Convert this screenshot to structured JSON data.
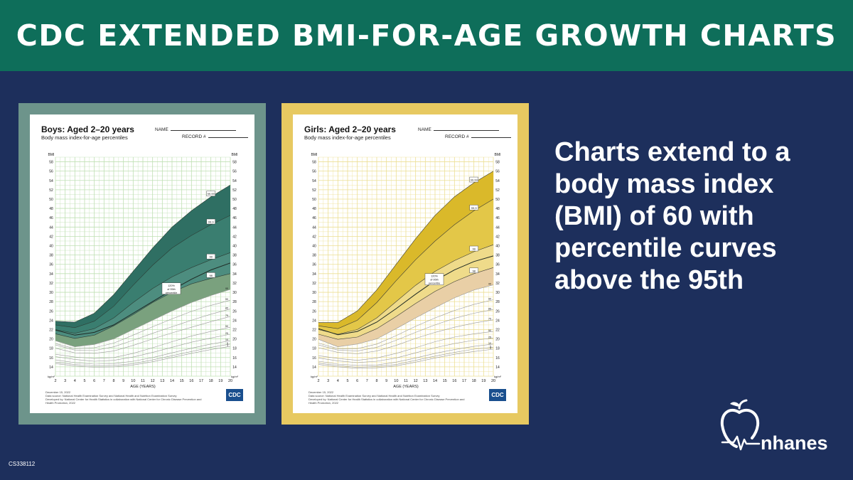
{
  "banner": {
    "title": "CDC EXTENDED BMI-FOR-AGE GROWTH CHARTS"
  },
  "caption": "Charts extend to a body mass index (BMI) of 60 with percentile curves above the 95th",
  "code": "CS338112",
  "logo": {
    "text": "nhanes",
    "icon": "apple-heartbeat-icon"
  },
  "colors": {
    "background": "#1d2f5c",
    "banner": "#0e6e5a",
    "boys_frame": "#6d948b",
    "girls_frame": "#e7c961"
  },
  "sheets": [
    {
      "title": "Boys: Aged 2–20 years",
      "subtitle": "Body mass index-for-age percentiles",
      "name_label": "NAME",
      "record_label": "RECORD #",
      "footer": [
        "December 15, 2022",
        "Data source: National Health Examination Survey and National Health and Nutrition Examination Survey",
        "Developed by: National Center for Health Statistics in collaboration with National Center for Chronic Disease Prevention and",
        "Health Promotion, 2022"
      ],
      "cdc_logo": "CDC"
    },
    {
      "title": "Girls: Aged 2–20 years",
      "subtitle": "Body mass index-for-age percentiles",
      "name_label": "NAME",
      "record_label": "RECORD #",
      "footer": [
        "December 15, 2022",
        "Data source: National Health Examination Survey and National Health and Nutrition Examination Survey",
        "Developed by: National Center for Health Statistics in collaboration with National Center for Chronic Disease Prevention and",
        "Health Promotion, 2022"
      ],
      "cdc_logo": "CDC"
    }
  ],
  "chart_data": [
    {
      "type": "line",
      "title": "Boys: Aged 2–20 years",
      "subtitle": "Body mass index-for-age percentiles",
      "xlabel": "AGE (YEARS)",
      "ylabel": "BMI",
      "unit": "kg/m²",
      "xlim": [
        2,
        20
      ],
      "ylim": [
        12,
        59
      ],
      "xticks": [
        2,
        3,
        4,
        5,
        6,
        7,
        8,
        9,
        10,
        11,
        12,
        13,
        14,
        15,
        16,
        17,
        18,
        19,
        20
      ],
      "yticks": [
        14,
        16,
        18,
        20,
        22,
        24,
        26,
        28,
        30,
        32,
        34,
        36,
        38,
        40,
        42,
        44,
        46,
        48,
        50,
        52,
        54,
        56,
        58
      ],
      "grid": true,
      "theme": {
        "grid": "#bfe0b3",
        "bands": [
          "#2f6f63",
          "#3a7e70",
          "#4d8d7f",
          "#7aa17e"
        ],
        "line": "#2a3b33"
      },
      "x": [
        2,
        4,
        6,
        8,
        10,
        12,
        14,
        16,
        18,
        20
      ],
      "series": [
        {
          "name": "99.99",
          "values": [
            23.8,
            23.6,
            25.5,
            29.5,
            34.5,
            39.5,
            44.0,
            47.5,
            50.5,
            53.0
          ]
        },
        {
          "name": "99.9",
          "values": [
            23.0,
            22.4,
            23.8,
            27.0,
            31.5,
            35.8,
            39.5,
            42.2,
            44.5,
            46.5
          ]
        },
        {
          "name": "99",
          "values": [
            22.0,
            21.2,
            22.2,
            24.5,
            27.8,
            30.8,
            33.3,
            35.3,
            37.0,
            38.5
          ]
        },
        {
          "name": "120% of 95th percentile",
          "values": [
            21.9,
            20.8,
            21.4,
            23.0,
            25.5,
            28.0,
            30.5,
            32.8,
            34.8,
            36.3
          ]
        },
        {
          "name": "98",
          "values": [
            21.1,
            20.1,
            20.8,
            22.8,
            25.2,
            27.8,
            30.0,
            31.8,
            33.0,
            34.0
          ]
        },
        {
          "name": "95",
          "values": [
            19.6,
            18.3,
            18.8,
            20.0,
            22.0,
            24.0,
            26.0,
            27.8,
            29.3,
            30.6
          ]
        },
        {
          "name": "90",
          "values": [
            19.0,
            17.9,
            18.1,
            19.1,
            20.8,
            22.6,
            24.3,
            25.9,
            27.2,
            28.3
          ]
        },
        {
          "name": "85",
          "values": [
            18.7,
            17.6,
            17.5,
            18.3,
            19.7,
            21.2,
            22.6,
            24.0,
            25.3,
            26.4
          ]
        },
        {
          "name": "75",
          "values": [
            18.0,
            17.0,
            16.9,
            17.4,
            18.6,
            20.0,
            21.3,
            22.5,
            23.7,
            24.8
          ]
        },
        {
          "name": "50",
          "values": [
            16.7,
            16.1,
            15.8,
            16.0,
            16.9,
            18.1,
            19.4,
            20.6,
            21.6,
            22.5
          ]
        },
        {
          "name": "25",
          "values": [
            16.2,
            15.6,
            15.2,
            15.4,
            16.1,
            17.1,
            18.2,
            19.3,
            20.2,
            21.0
          ]
        },
        {
          "name": "10",
          "values": [
            15.5,
            14.9,
            14.6,
            14.7,
            15.2,
            16.0,
            17.0,
            18.0,
            18.9,
            19.6
          ]
        },
        {
          "name": "5",
          "values": [
            15.0,
            14.5,
            14.2,
            14.3,
            14.7,
            15.5,
            16.4,
            17.3,
            18.2,
            18.9
          ]
        },
        {
          "name": "3",
          "values": [
            14.7,
            14.2,
            13.9,
            14.0,
            14.4,
            15.1,
            16.0,
            16.9,
            17.7,
            18.4
          ]
        }
      ]
    },
    {
      "type": "line",
      "title": "Girls: Aged 2–20 years",
      "subtitle": "Body mass index-for-age percentiles",
      "xlabel": "AGE (YEARS)",
      "ylabel": "BMI",
      "unit": "kg/m²",
      "xlim": [
        2,
        20
      ],
      "ylim": [
        12,
        59
      ],
      "xticks": [
        2,
        3,
        4,
        5,
        6,
        7,
        8,
        9,
        10,
        11,
        12,
        13,
        14,
        15,
        16,
        17,
        18,
        19,
        20
      ],
      "yticks": [
        14,
        16,
        18,
        20,
        22,
        24,
        26,
        28,
        30,
        32,
        34,
        36,
        38,
        40,
        42,
        44,
        46,
        48,
        50,
        52,
        54,
        56,
        58
      ],
      "grid": true,
      "theme": {
        "grid": "#ecdf94",
        "bands": [
          "#dab92a",
          "#e3c748",
          "#efdb8a",
          "#e9cfa6"
        ],
        "line": "#3b3b33"
      },
      "x": [
        2,
        4,
        6,
        8,
        10,
        12,
        14,
        16,
        18,
        20
      ],
      "series": [
        {
          "name": "99.99",
          "values": [
            23.5,
            23.5,
            26.0,
            30.5,
            36.0,
            41.5,
            46.5,
            50.5,
            53.5,
            56.0
          ]
        },
        {
          "name": "99.9",
          "values": [
            22.8,
            22.2,
            24.0,
            27.8,
            32.5,
            37.0,
            41.0,
            44.5,
            47.5,
            50.0
          ]
        },
        {
          "name": "99",
          "values": [
            22.0,
            21.0,
            22.0,
            24.5,
            28.0,
            31.5,
            34.5,
            36.8,
            38.7,
            40.2
          ]
        },
        {
          "name": "120% of 95th percentile",
          "values": [
            22.2,
            20.9,
            21.6,
            23.6,
            26.5,
            29.6,
            32.5,
            34.8,
            36.6,
            37.8
          ]
        },
        {
          "name": "98",
          "values": [
            21.0,
            19.9,
            20.4,
            22.2,
            24.8,
            27.6,
            30.2,
            32.3,
            34.0,
            35.3
          ]
        },
        {
          "name": "95",
          "values": [
            19.9,
            18.3,
            18.9,
            20.0,
            22.2,
            24.5,
            26.7,
            28.8,
            30.5,
            31.6
          ]
        },
        {
          "name": "90",
          "values": [
            19.1,
            17.9,
            17.9,
            18.9,
            20.7,
            22.7,
            24.5,
            26.1,
            27.4,
            28.4
          ]
        },
        {
          "name": "85",
          "values": [
            18.7,
            17.6,
            17.4,
            18.2,
            19.7,
            21.4,
            23.0,
            24.4,
            25.5,
            26.3
          ]
        },
        {
          "name": "75",
          "values": [
            18.1,
            17.1,
            16.8,
            17.4,
            18.6,
            20.1,
            21.4,
            22.5,
            23.4,
            24.1
          ]
        },
        {
          "name": "50",
          "values": [
            16.4,
            15.8,
            15.4,
            15.9,
            16.9,
            18.1,
            19.4,
            20.4,
            21.1,
            21.6
          ]
        },
        {
          "name": "25",
          "values": [
            15.9,
            15.3,
            14.9,
            15.2,
            15.9,
            17.0,
            18.1,
            19.0,
            19.7,
            20.2
          ]
        },
        {
          "name": "10",
          "values": [
            15.2,
            14.6,
            14.3,
            14.4,
            15.0,
            15.9,
            16.9,
            17.7,
            18.4,
            18.9
          ]
        },
        {
          "name": "5",
          "values": [
            14.8,
            14.3,
            13.9,
            14.1,
            14.5,
            15.4,
            16.3,
            17.1,
            17.8,
            18.2
          ]
        },
        {
          "name": "3",
          "values": [
            14.5,
            14.0,
            13.7,
            13.8,
            14.2,
            15.0,
            15.9,
            16.7,
            17.3,
            17.8
          ]
        }
      ]
    }
  ]
}
